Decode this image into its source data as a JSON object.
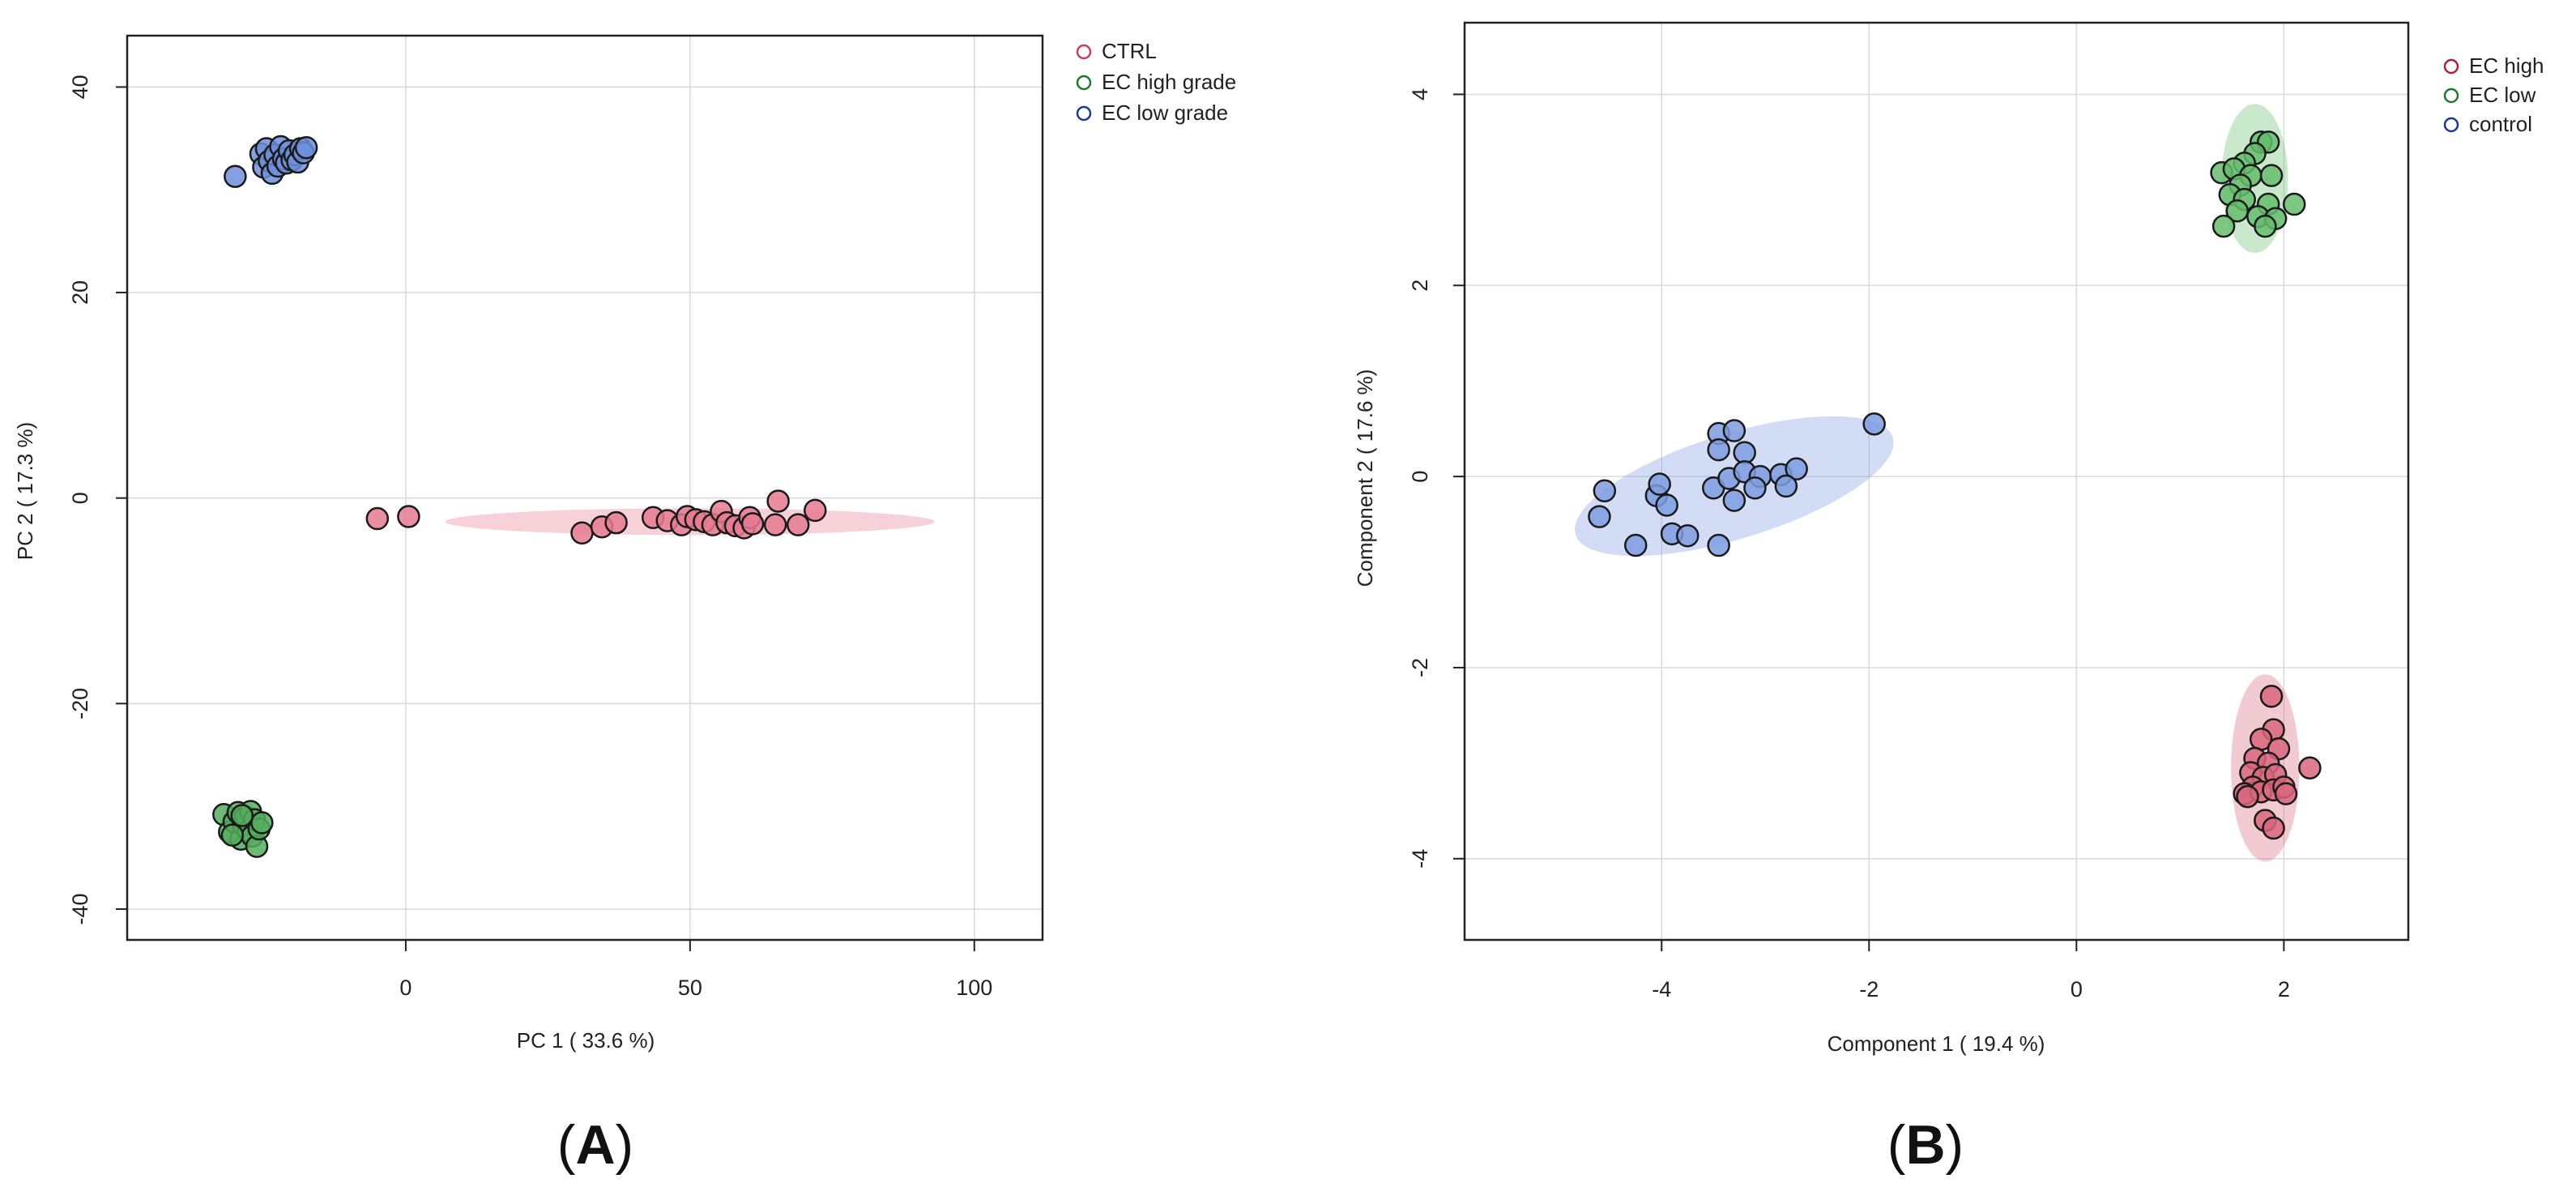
{
  "chart_data": [
    {
      "type": "scatter",
      "panel_label_letter": "A",
      "xlabel": "PC 1 ( 33.6 %)",
      "ylabel": "PC 2 ( 17.3 %)",
      "xlim": [
        -49,
        112
      ],
      "ylim": [
        -43,
        45
      ],
      "xticks": [
        0,
        50,
        100
      ],
      "yticks": [
        40,
        20,
        0,
        -20,
        -40
      ],
      "grid": true,
      "legend_position": "top-right",
      "series": [
        {
          "name": "CTRL",
          "color": "#c8405a",
          "fill": "#e67a90",
          "ellipse": {
            "cx": 50,
            "cy": -2.3,
            "rx": 43,
            "ry": 1.3,
            "angle": 0
          },
          "points": [
            [
              -5,
              -2
            ],
            [
              0.5,
              -1.8
            ],
            [
              31,
              -3.4
            ],
            [
              34.5,
              -2.8
            ],
            [
              37,
              -2.4
            ],
            [
              43.5,
              -1.9
            ],
            [
              46,
              -2.2
            ],
            [
              48.5,
              -2.6
            ],
            [
              49.5,
              -1.8
            ],
            [
              51,
              -2.1
            ],
            [
              52.5,
              -2.3
            ],
            [
              54,
              -2.6
            ],
            [
              55.5,
              -1.3
            ],
            [
              56.5,
              -2.4
            ],
            [
              58,
              -2.7
            ],
            [
              59.5,
              -2.9
            ],
            [
              60.5,
              -1.9
            ],
            [
              61,
              -2.5
            ],
            [
              65,
              -2.6
            ],
            [
              65.5,
              -0.3
            ],
            [
              69,
              -2.6
            ],
            [
              72,
              -1.2
            ]
          ]
        },
        {
          "name": "EC high grade",
          "color": "#1f7a2e",
          "fill": "#55ad5d",
          "ellipse": null,
          "points": [
            [
              -32,
              -30.8
            ],
            [
              -31,
              -32.5
            ],
            [
              -30.2,
              -31.5
            ],
            [
              -29.5,
              -30.6
            ],
            [
              -29,
              -33.2
            ],
            [
              -28.6,
              -31.8
            ],
            [
              -28.2,
              -31
            ],
            [
              -27.7,
              -32.4
            ],
            [
              -27.3,
              -30.5
            ],
            [
              -27,
              -32.9
            ],
            [
              -26.6,
              -31.3
            ],
            [
              -26.2,
              -33.9
            ],
            [
              -25.8,
              -32.2
            ],
            [
              -25.3,
              -31.6
            ],
            [
              -30.5,
              -32.8
            ],
            [
              -28.8,
              -30.9
            ]
          ]
        },
        {
          "name": "EC low grade",
          "color": "#1e3a8c",
          "fill": "#6f8fdc",
          "ellipse": null,
          "points": [
            [
              -30,
              31.3
            ],
            [
              -25.5,
              33.5
            ],
            [
              -25,
              32.2
            ],
            [
              -24.5,
              34
            ],
            [
              -24,
              32.8
            ],
            [
              -23.5,
              31.6
            ],
            [
              -23,
              33.4
            ],
            [
              -22.5,
              32.3
            ],
            [
              -22,
              34.2
            ],
            [
              -21.5,
              33
            ],
            [
              -21,
              32.6
            ],
            [
              -20.5,
              33.8
            ],
            [
              -20,
              32.9
            ],
            [
              -19.5,
              33.4
            ],
            [
              -19,
              32.7
            ],
            [
              -18.5,
              34
            ],
            [
              -18,
              33.6
            ],
            [
              -17.5,
              34.1
            ]
          ]
        }
      ]
    },
    {
      "type": "scatter",
      "panel_label_letter": "B",
      "xlabel": "Component 1 ( 19.4 %)",
      "ylabel": "Component 2 ( 17.6 %)",
      "xlim": [
        -5.9,
        3.2
      ],
      "ylim": [
        -4.85,
        4.75
      ],
      "xticks": [
        -4,
        -2,
        0,
        2
      ],
      "yticks": [
        4,
        2,
        0,
        -2,
        -4
      ],
      "grid": true,
      "legend_position": "top-right",
      "series": [
        {
          "name": "EC high",
          "color": "#b01f3c",
          "fill": "#d9677c",
          "ellipse": {
            "cx": 1.82,
            "cy": -3.05,
            "rx": 0.33,
            "ry": 0.98,
            "angle": 0
          },
          "points": [
            [
              1.88,
              -2.3
            ],
            [
              1.9,
              -2.65
            ],
            [
              1.78,
              -2.75
            ],
            [
              1.95,
              -2.85
            ],
            [
              1.72,
              -2.95
            ],
            [
              1.85,
              -3.0
            ],
            [
              1.68,
              -3.1
            ],
            [
              1.8,
              -3.15
            ],
            [
              1.92,
              -3.12
            ],
            [
              1.7,
              -3.25
            ],
            [
              1.62,
              -3.32
            ],
            [
              1.78,
              -3.3
            ],
            [
              1.9,
              -3.28
            ],
            [
              2.0,
              -3.25
            ],
            [
              2.02,
              -3.32
            ],
            [
              1.65,
              -3.35
            ],
            [
              1.82,
              -3.6
            ],
            [
              1.9,
              -3.68
            ],
            [
              2.25,
              -3.05
            ]
          ]
        },
        {
          "name": "EC low",
          "color": "#1f7a2e",
          "fill": "#66bd6d",
          "ellipse": {
            "cx": 1.72,
            "cy": 3.12,
            "rx": 0.32,
            "ry": 0.78,
            "angle": 0
          },
          "points": [
            [
              1.78,
              3.5
            ],
            [
              1.85,
              3.5
            ],
            [
              1.72,
              3.38
            ],
            [
              1.62,
              3.28
            ],
            [
              1.4,
              3.18
            ],
            [
              1.52,
              3.22
            ],
            [
              1.68,
              3.15
            ],
            [
              1.88,
              3.15
            ],
            [
              1.58,
              3.05
            ],
            [
              1.48,
              2.95
            ],
            [
              1.62,
              2.9
            ],
            [
              1.85,
              2.85
            ],
            [
              1.55,
              2.78
            ],
            [
              1.75,
              2.72
            ],
            [
              1.92,
              2.7
            ],
            [
              1.42,
              2.62
            ],
            [
              1.82,
              2.62
            ],
            [
              2.1,
              2.85
            ]
          ]
        },
        {
          "name": "control",
          "color": "#1e3a8c",
          "fill": "#7f9ce0",
          "ellipse": {
            "cx": -3.3,
            "cy": -0.1,
            "rx": 1.6,
            "ry": 0.55,
            "angle": -17
          },
          "points": [
            [
              -4.55,
              -0.15
            ],
            [
              -4.6,
              -0.42
            ],
            [
              -4.25,
              -0.72
            ],
            [
              -4.05,
              -0.2
            ],
            [
              -4.02,
              -0.08
            ],
            [
              -3.95,
              -0.3
            ],
            [
              -3.9,
              -0.6
            ],
            [
              -3.75,
              -0.62
            ],
            [
              -3.45,
              0.45
            ],
            [
              -3.3,
              0.48
            ],
            [
              -3.45,
              0.28
            ],
            [
              -3.2,
              0.25
            ],
            [
              -3.5,
              -0.12
            ],
            [
              -3.35,
              -0.02
            ],
            [
              -3.3,
              -0.25
            ],
            [
              -3.2,
              0.05
            ],
            [
              -3.05,
              0.0
            ],
            [
              -3.1,
              -0.12
            ],
            [
              -2.85,
              0.02
            ],
            [
              -2.7,
              0.08
            ],
            [
              -2.8,
              -0.1
            ],
            [
              -3.45,
              -0.72
            ],
            [
              -1.95,
              0.55
            ]
          ]
        }
      ]
    }
  ]
}
